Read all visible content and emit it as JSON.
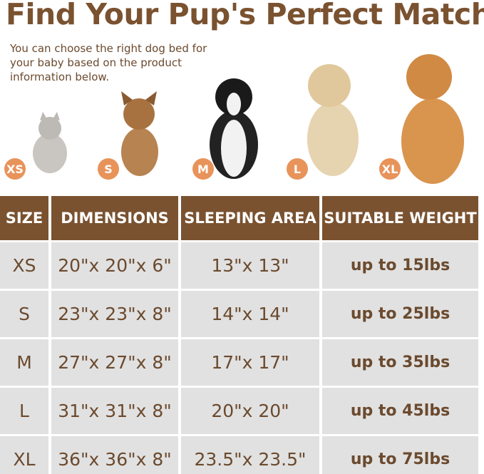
{
  "title": "Find Your Pup's Perfect Match",
  "subtitle": "You can choose the right dog bed for your baby based on the product information below.",
  "colors": {
    "header_bg": "#7a5230",
    "cell_bg": "#e1e1e1",
    "text": "#6b4a2e",
    "badge": "#e8935a"
  },
  "animals": [
    {
      "badge": "XS",
      "kind": "cat"
    },
    {
      "badge": "S",
      "kind": "french-bulldog"
    },
    {
      "badge": "M",
      "kind": "border-collie"
    },
    {
      "badge": "L",
      "kind": "golden-retriever-puppy"
    },
    {
      "badge": "XL",
      "kind": "golden-retriever"
    }
  ],
  "table": {
    "headers": [
      "SIZE",
      "DIMENSIONS",
      "SLEEPING AREA",
      "SUITABLE WEIGHT"
    ],
    "rows": [
      [
        "XS",
        "20\"x 20\"x 6\"",
        "13\"x 13\"",
        "up to 15lbs"
      ],
      [
        "S",
        "23\"x 23\"x 8\"",
        "14\"x 14\"",
        "up to 25lbs"
      ],
      [
        "M",
        "27\"x 27\"x 8\"",
        "17\"x 17\"",
        "up to 35lbs"
      ],
      [
        "L",
        "31\"x 31\"x 8\"",
        "20\"x 20\"",
        "up to 45lbs"
      ],
      [
        "XL",
        "36\"x 36\"x 8\"",
        "23.5\"x 23.5\"",
        "up to 75lbs"
      ]
    ]
  }
}
